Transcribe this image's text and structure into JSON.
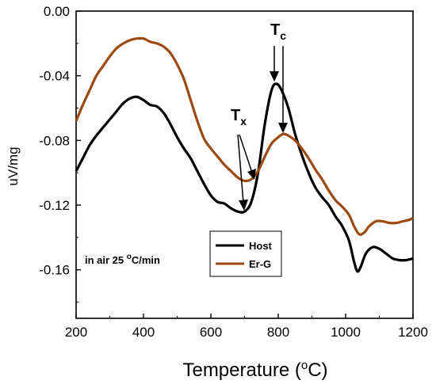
{
  "chart_data": {
    "type": "line",
    "xlabel": "Temperature (",
    "xlabel_sup": "o",
    "xlabel_suffix": "C)",
    "ylabel": "uV/mg",
    "xlim": [
      200,
      1200
    ],
    "ylim": [
      -0.19,
      0.0
    ],
    "x_ticks": [
      200,
      400,
      600,
      800,
      1000,
      1200
    ],
    "y_ticks": [
      0.0,
      -0.04,
      -0.08,
      -0.12,
      -0.16
    ],
    "y_tick_labels": [
      "0.00",
      "-0.04",
      "-0.08",
      "-0.12",
      "-0.16"
    ],
    "legend_position": "bottom-center",
    "series": [
      {
        "name": "Host",
        "color": "#000000",
        "points": [
          [
            200,
            -0.099
          ],
          [
            220,
            -0.091
          ],
          [
            240,
            -0.083
          ],
          [
            260,
            -0.077
          ],
          [
            280,
            -0.072
          ],
          [
            300,
            -0.067
          ],
          [
            320,
            -0.062
          ],
          [
            340,
            -0.057
          ],
          [
            360,
            -0.054
          ],
          [
            380,
            -0.053
          ],
          [
            400,
            -0.055
          ],
          [
            420,
            -0.058
          ],
          [
            440,
            -0.059
          ],
          [
            460,
            -0.063
          ],
          [
            480,
            -0.07
          ],
          [
            500,
            -0.078
          ],
          [
            520,
            -0.085
          ],
          [
            540,
            -0.091
          ],
          [
            560,
            -0.099
          ],
          [
            580,
            -0.107
          ],
          [
            600,
            -0.114
          ],
          [
            620,
            -0.118
          ],
          [
            640,
            -0.119
          ],
          [
            660,
            -0.122
          ],
          [
            680,
            -0.124
          ],
          [
            700,
            -0.124
          ],
          [
            720,
            -0.118
          ],
          [
            740,
            -0.1
          ],
          [
            760,
            -0.07
          ],
          [
            780,
            -0.049
          ],
          [
            795,
            -0.045
          ],
          [
            810,
            -0.049
          ],
          [
            830,
            -0.06
          ],
          [
            850,
            -0.076
          ],
          [
            870,
            -0.089
          ],
          [
            890,
            -0.1
          ],
          [
            910,
            -0.109
          ],
          [
            930,
            -0.115
          ],
          [
            950,
            -0.12
          ],
          [
            970,
            -0.127
          ],
          [
            990,
            -0.133
          ],
          [
            1010,
            -0.142
          ],
          [
            1025,
            -0.155
          ],
          [
            1035,
            -0.161
          ],
          [
            1045,
            -0.158
          ],
          [
            1060,
            -0.15
          ],
          [
            1080,
            -0.146
          ],
          [
            1100,
            -0.147
          ],
          [
            1120,
            -0.15
          ],
          [
            1140,
            -0.153
          ],
          [
            1160,
            -0.154
          ],
          [
            1180,
            -0.154
          ],
          [
            1200,
            -0.153
          ]
        ]
      },
      {
        "name": "Er-G",
        "color": "#9c4a12",
        "points": [
          [
            200,
            -0.068
          ],
          [
            220,
            -0.058
          ],
          [
            240,
            -0.049
          ],
          [
            260,
            -0.04
          ],
          [
            280,
            -0.034
          ],
          [
            300,
            -0.028
          ],
          [
            320,
            -0.023
          ],
          [
            340,
            -0.02
          ],
          [
            360,
            -0.018
          ],
          [
            380,
            -0.017
          ],
          [
            400,
            -0.017
          ],
          [
            420,
            -0.019
          ],
          [
            440,
            -0.02
          ],
          [
            460,
            -0.022
          ],
          [
            480,
            -0.026
          ],
          [
            500,
            -0.033
          ],
          [
            520,
            -0.042
          ],
          [
            540,
            -0.055
          ],
          [
            560,
            -0.068
          ],
          [
            580,
            -0.079
          ],
          [
            600,
            -0.085
          ],
          [
            620,
            -0.09
          ],
          [
            640,
            -0.095
          ],
          [
            660,
            -0.099
          ],
          [
            680,
            -0.103
          ],
          [
            700,
            -0.105
          ],
          [
            720,
            -0.104
          ],
          [
            740,
            -0.099
          ],
          [
            760,
            -0.09
          ],
          [
            780,
            -0.082
          ],
          [
            800,
            -0.078
          ],
          [
            815,
            -0.076
          ],
          [
            830,
            -0.077
          ],
          [
            850,
            -0.08
          ],
          [
            870,
            -0.085
          ],
          [
            890,
            -0.091
          ],
          [
            910,
            -0.098
          ],
          [
            930,
            -0.104
          ],
          [
            950,
            -0.111
          ],
          [
            970,
            -0.117
          ],
          [
            990,
            -0.121
          ],
          [
            1010,
            -0.126
          ],
          [
            1025,
            -0.133
          ],
          [
            1040,
            -0.138
          ],
          [
            1055,
            -0.137
          ],
          [
            1070,
            -0.133
          ],
          [
            1090,
            -0.13
          ],
          [
            1110,
            -0.13
          ],
          [
            1130,
            -0.131
          ],
          [
            1150,
            -0.131
          ],
          [
            1170,
            -0.13
          ],
          [
            1190,
            -0.129
          ],
          [
            1200,
            -0.128
          ]
        ]
      }
    ],
    "annotations": [
      {
        "text": "in air 25 ",
        "sup": "o",
        "suffix": "C/min"
      },
      {
        "label": "T",
        "sub": "c"
      },
      {
        "label": "T",
        "sub": "x"
      }
    ]
  }
}
